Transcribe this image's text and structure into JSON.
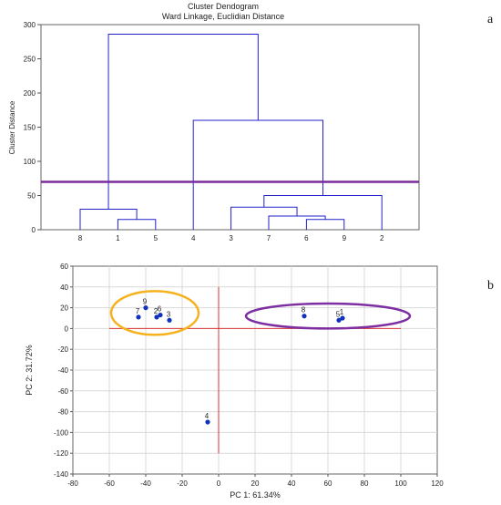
{
  "panel_labels": [
    "a",
    "b"
  ],
  "chart_data": [
    {
      "type": "dendrogram",
      "title": "Cluster Dendogram",
      "subtitle": "Ward Linkage, Euclidian Distance",
      "xlabel": "",
      "ylabel": "Cluster Distance",
      "ylim": [
        0,
        300
      ],
      "yticks": [
        0,
        50,
        100,
        150,
        200,
        250,
        300
      ],
      "leaf_order": [
        "8",
        "1",
        "5",
        "4",
        "3",
        "7",
        "6",
        "9",
        "2"
      ],
      "merges": [
        {
          "id": "m1",
          "left": "1",
          "right": "5",
          "height": 15
        },
        {
          "id": "m2",
          "left": "8",
          "right": "m1",
          "height": 30
        },
        {
          "id": "m3",
          "left": "6",
          "right": "9",
          "height": 15
        },
        {
          "id": "m4",
          "left": "7",
          "right": "m3",
          "height": 20
        },
        {
          "id": "m5",
          "left": "3",
          "right": "m4",
          "height": 33
        },
        {
          "id": "m6",
          "left": "m5",
          "right": "2",
          "height": 50
        },
        {
          "id": "m7",
          "left": "4",
          "right": "m6",
          "height": 160
        },
        {
          "id": "m8",
          "left": "m2",
          "right": "m7",
          "height": 286
        }
      ],
      "cut_line": {
        "y": 70,
        "color": "#7a2a9a"
      },
      "line_color": "#2222cc"
    },
    {
      "type": "scatter",
      "title": "",
      "xlabel": "PC 1: 61.34%",
      "ylabel": "PC 2: 31.72%",
      "xlim": [
        -80,
        120
      ],
      "ylim": [
        -140,
        60
      ],
      "xticks": [
        -80,
        -60,
        -40,
        -20,
        0,
        20,
        40,
        60,
        80,
        100,
        120
      ],
      "yticks": [
        -140,
        -120,
        -100,
        -80,
        -60,
        -40,
        -20,
        0,
        20,
        40,
        60
      ],
      "grid": true,
      "points": [
        {
          "label": "1",
          "x": 68,
          "y": 10
        },
        {
          "label": "2",
          "x": -34,
          "y": 11
        },
        {
          "label": "3",
          "x": -27,
          "y": 8
        },
        {
          "label": "4",
          "x": -6,
          "y": -90
        },
        {
          "label": "5",
          "x": 66,
          "y": 8
        },
        {
          "label": "6",
          "x": -32,
          "y": 13
        },
        {
          "label": "7",
          "x": -44,
          "y": 11
        },
        {
          "label": "8",
          "x": 47,
          "y": 12
        },
        {
          "label": "9",
          "x": -40,
          "y": 20
        }
      ],
      "point_color": "#1133bb",
      "reference_lines": {
        "x0": {
          "from": -60,
          "to": 100
        },
        "y0": {
          "from": -120,
          "to": 40
        },
        "color": "#dd3333"
      },
      "ellipses": [
        {
          "center_x": -35,
          "center_y": 15,
          "rx": 24,
          "ry": 21,
          "color": "#f5b21e"
        },
        {
          "center_x": 60,
          "center_y": 12,
          "rx": 45,
          "ry": 12,
          "color": "#7d2ea0"
        }
      ]
    }
  ]
}
